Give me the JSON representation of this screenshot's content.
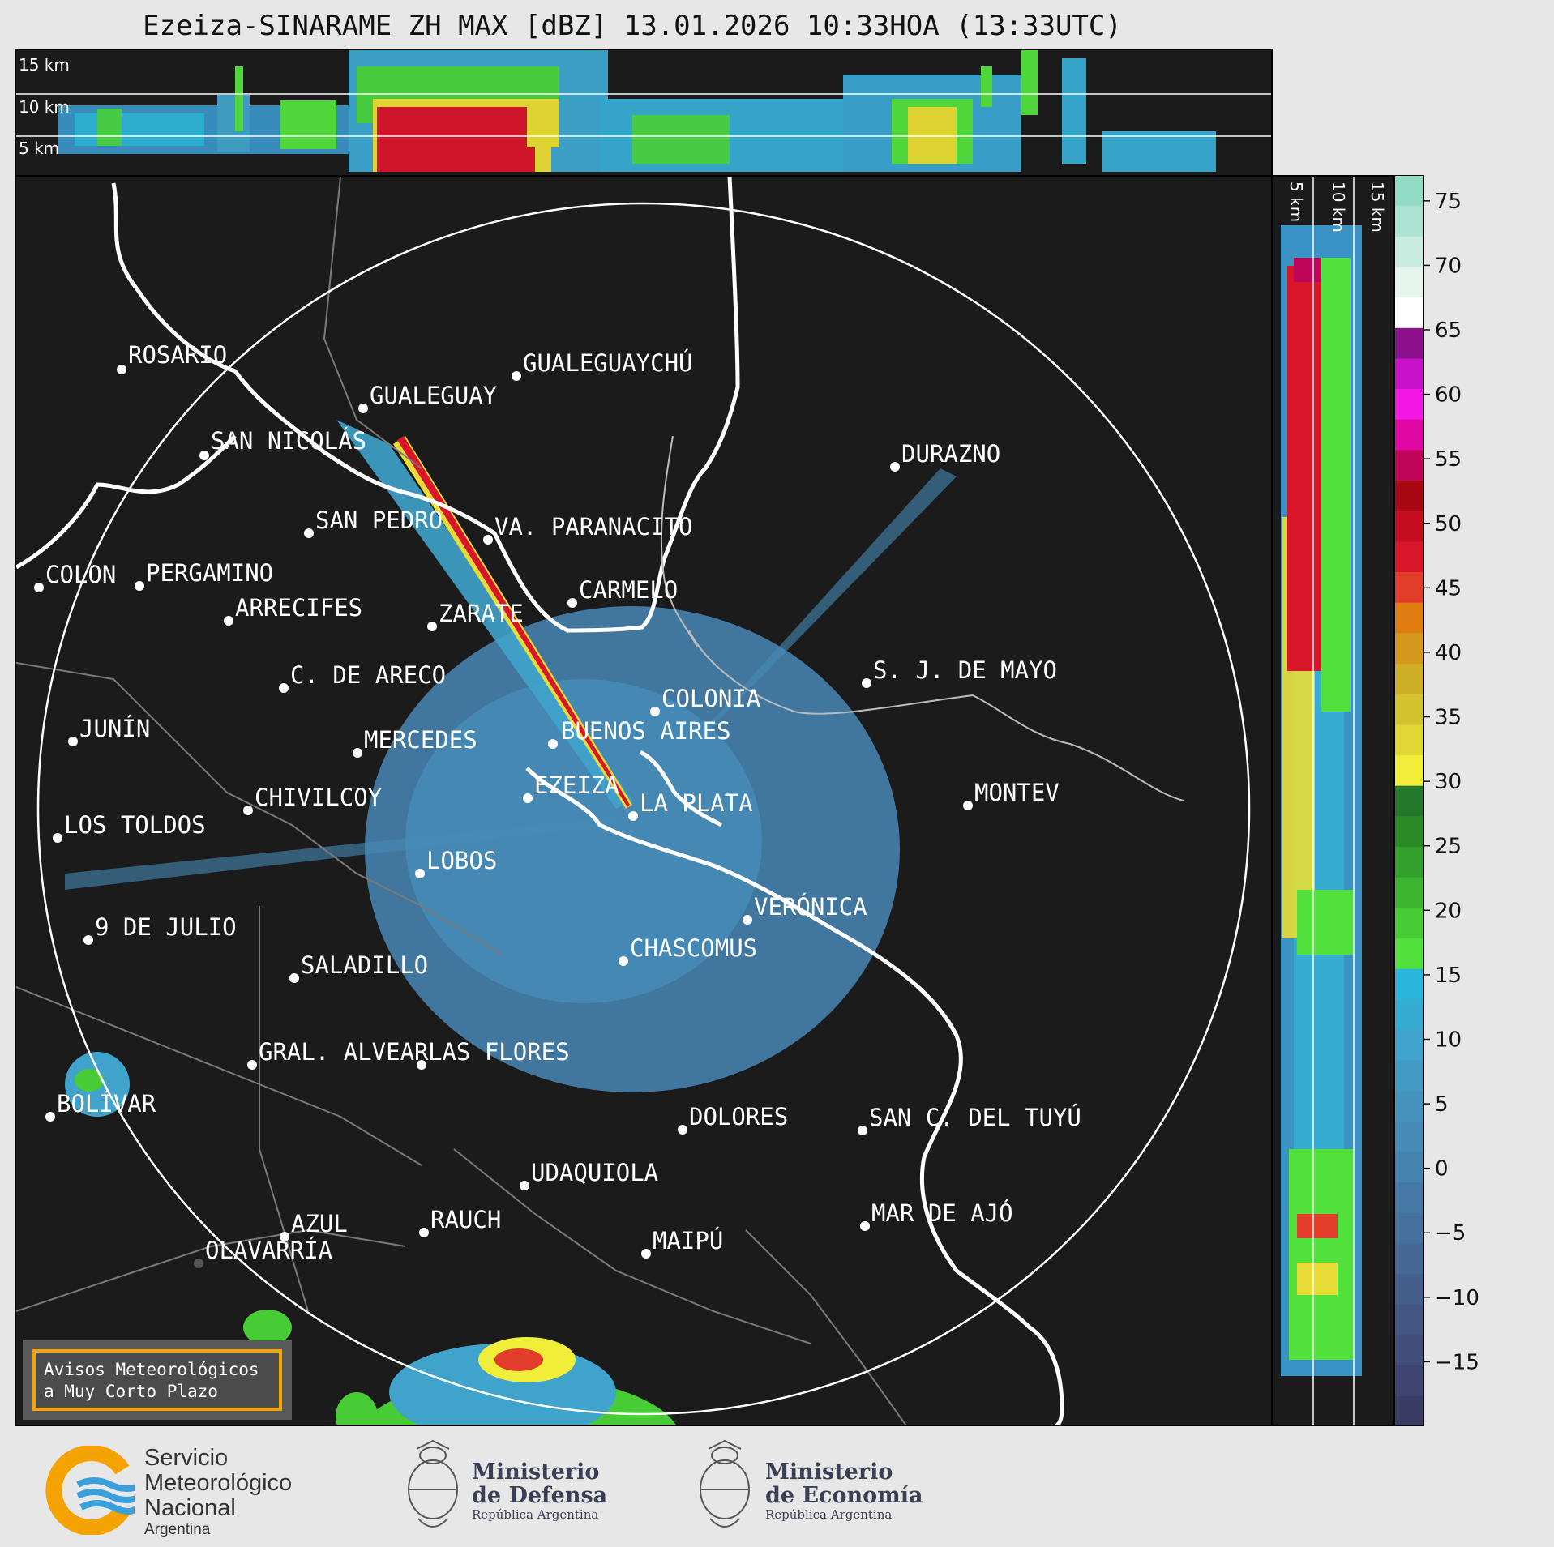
{
  "title": "Ezeiza-SINARAME ZH MAX [dBZ] 13.01.2026 10:33HOA (13:33UTC)",
  "top_panel": {
    "altitudes": [
      "15 km",
      "10 km",
      "5 km"
    ]
  },
  "side_panel": {
    "altitudes": [
      "5 km",
      "10 km",
      "15 km"
    ]
  },
  "cities": [
    {
      "name": "ROSARIO"
    },
    {
      "name": "GUALEGUAYCHÚ"
    },
    {
      "name": "GUALEGUAY"
    },
    {
      "name": "SAN NICOLÁS"
    },
    {
      "name": "DURAZNO"
    },
    {
      "name": "SAN PEDRO"
    },
    {
      "name": "VA. PARANACITO"
    },
    {
      "name": "COLON"
    },
    {
      "name": "PERGAMINO"
    },
    {
      "name": "CARMELO"
    },
    {
      "name": "ARRECIFES"
    },
    {
      "name": "ZARATE"
    },
    {
      "name": "S. J. DE MAYO"
    },
    {
      "name": "C. DE ARECO"
    },
    {
      "name": "COLONIA"
    },
    {
      "name": "JUNÍN"
    },
    {
      "name": "BUENOS AIRES"
    },
    {
      "name": "MERCEDES"
    },
    {
      "name": "EZEIZA"
    },
    {
      "name": "MONTEV"
    },
    {
      "name": "CHIVILCOY"
    },
    {
      "name": "LA PLATA"
    },
    {
      "name": "LOS TOLDOS"
    },
    {
      "name": "LOBOS"
    },
    {
      "name": "VERÓNICA"
    },
    {
      "name": "9 DE JULIO"
    },
    {
      "name": "CHASCOMUS"
    },
    {
      "name": "SALADILLO"
    },
    {
      "name": "GRAL. ALVEAR"
    },
    {
      "name": "LAS FLORES"
    },
    {
      "name": "BOLÍVAR"
    },
    {
      "name": "DOLORES"
    },
    {
      "name": "SAN C. DEL TUYÚ"
    },
    {
      "name": "UDAQUIOLA"
    },
    {
      "name": "MAR DE AJÓ"
    },
    {
      "name": "AZUL"
    },
    {
      "name": "RAUCH"
    },
    {
      "name": "MAIPÚ"
    },
    {
      "name": "OLAVARRÍA"
    }
  ],
  "colorbar": {
    "ticks": [
      "75",
      "70",
      "65",
      "60",
      "55",
      "50",
      "45",
      "40",
      "35",
      "30",
      "25",
      "20",
      "15",
      "10",
      "5",
      "0",
      "−5",
      "−10",
      "−15"
    ],
    "tick_values": [
      75,
      70,
      65,
      60,
      55,
      50,
      45,
      40,
      35,
      30,
      25,
      20,
      15,
      10,
      5,
      0,
      -5,
      -10,
      -15
    ],
    "range": [
      -20,
      77
    ],
    "colors": [
      "#3b3c66",
      "#3f4570",
      "#424d79",
      "#445683",
      "#455f8c",
      "#466895",
      "#46719e",
      "#4679a6",
      "#4682ae",
      "#468ab6",
      "#4592bd",
      "#439ac4",
      "#3fa3cb",
      "#36acd3",
      "#2ab6dc",
      "#52e13c",
      "#48cc36",
      "#3db531",
      "#339f2c",
      "#2a8a27",
      "#23782b",
      "#f1ee39",
      "#e0d634",
      "#d4c22f",
      "#cfae28",
      "#d4981c",
      "#e07d12",
      "#e23d2a",
      "#d9152a",
      "#c40d1e",
      "#a80812",
      "#c1055b",
      "#e007a5",
      "#f217e3",
      "#c811c8",
      "#8c0f8c",
      "#ffffff",
      "#e6f5ee",
      "#c8ece0",
      "#ade3d2",
      "#93dac5"
    ]
  },
  "avisos": {
    "line1": "Avisos Meteorológicos",
    "line2": "a Muy Corto Plazo"
  },
  "logos": {
    "smn": {
      "line1": "Servicio",
      "line2": "Meteorológico",
      "line3": "Nacional",
      "line4": "Argentina"
    },
    "defensa": {
      "line1": "Ministerio",
      "line2": "de Defensa",
      "line3": "República Argentina"
    },
    "economia": {
      "line1": "Ministerio",
      "line2": "de Economía",
      "line3": "República Argentina"
    }
  }
}
